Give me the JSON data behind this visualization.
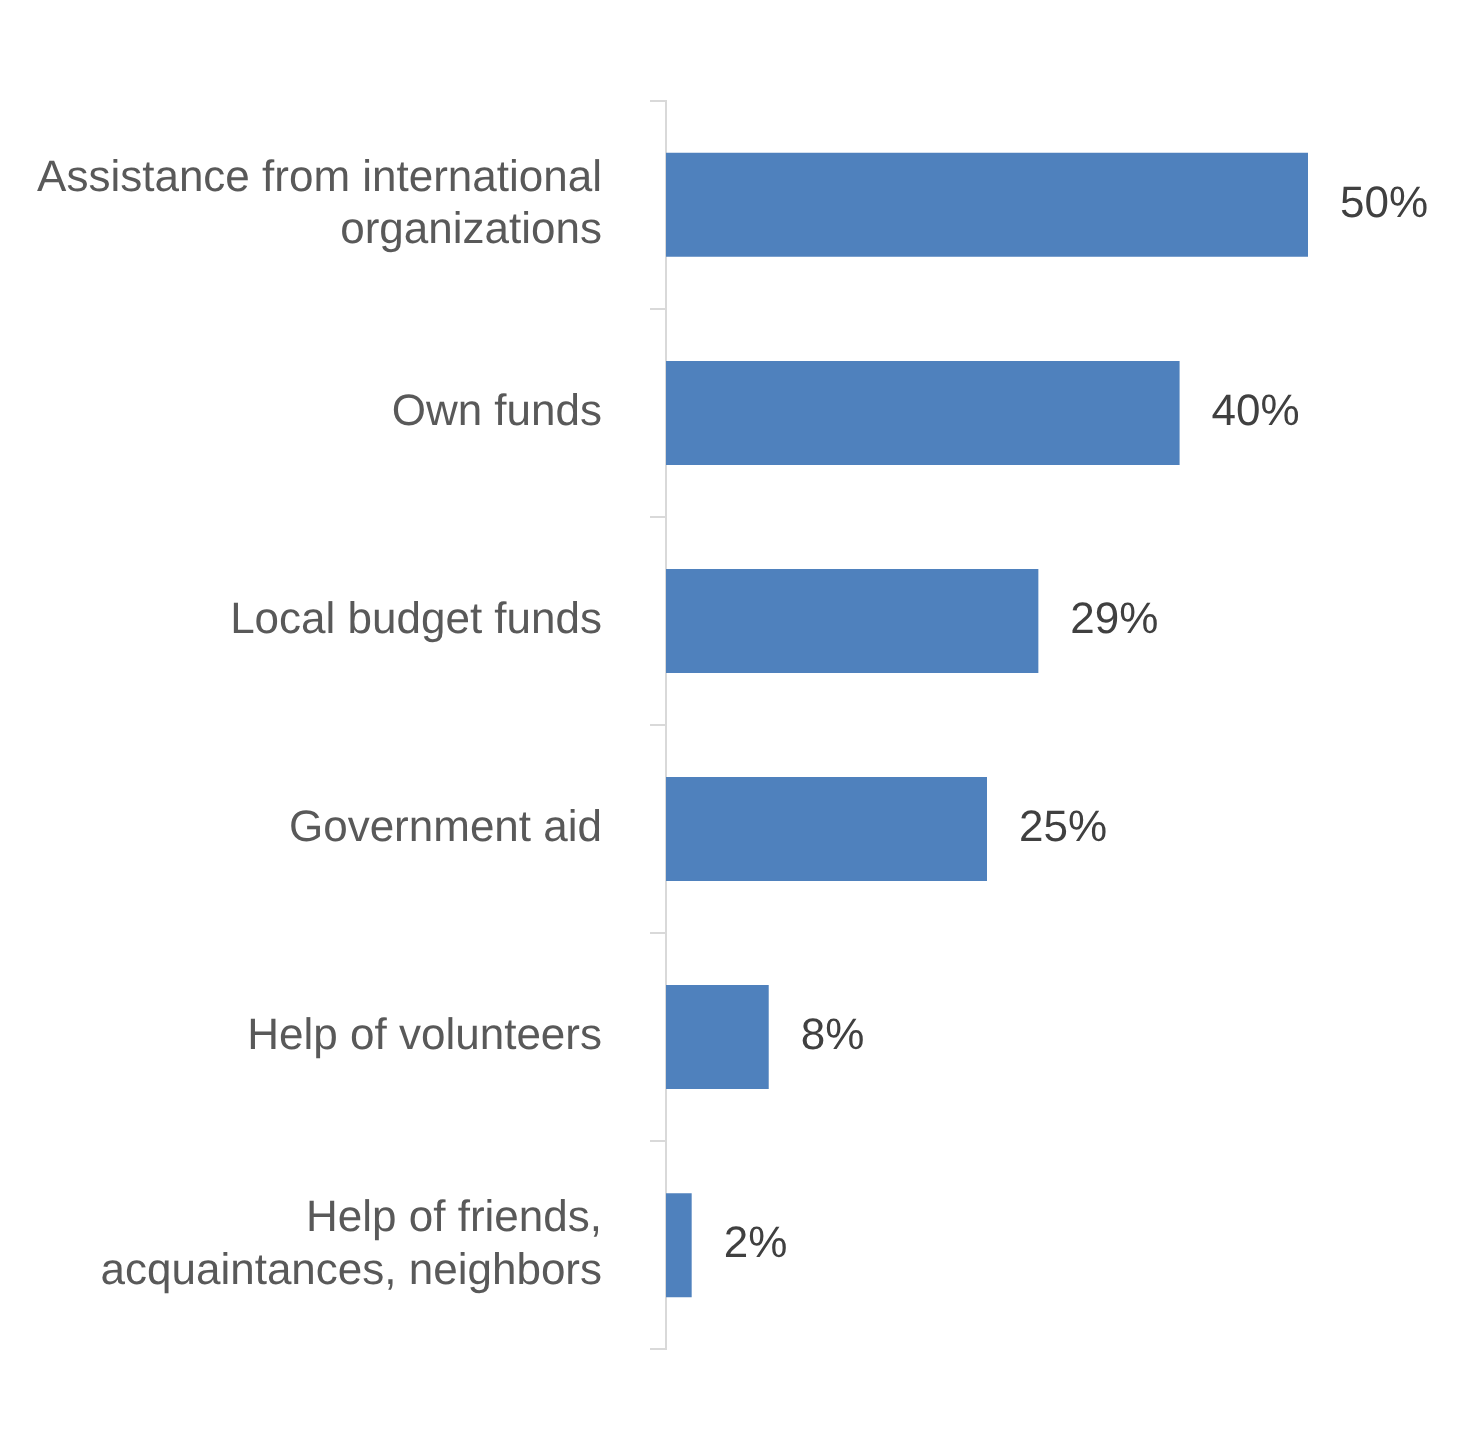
{
  "chart_data": {
    "type": "bar",
    "orientation": "horizontal",
    "categories": [
      "Assistance from international organizations",
      "Own funds",
      "Local budget funds",
      "Government aid",
      "Help of volunteers",
      "Help of friends, acquaintances, neighbors"
    ],
    "values": [
      50,
      40,
      29,
      25,
      8,
      2
    ],
    "value_labels": [
      "50%",
      "40%",
      "29%",
      "25%",
      "8%",
      "2%"
    ],
    "color": "#4f81bd",
    "tick_labels": "y",
    "grid": false,
    "legend": false
  }
}
